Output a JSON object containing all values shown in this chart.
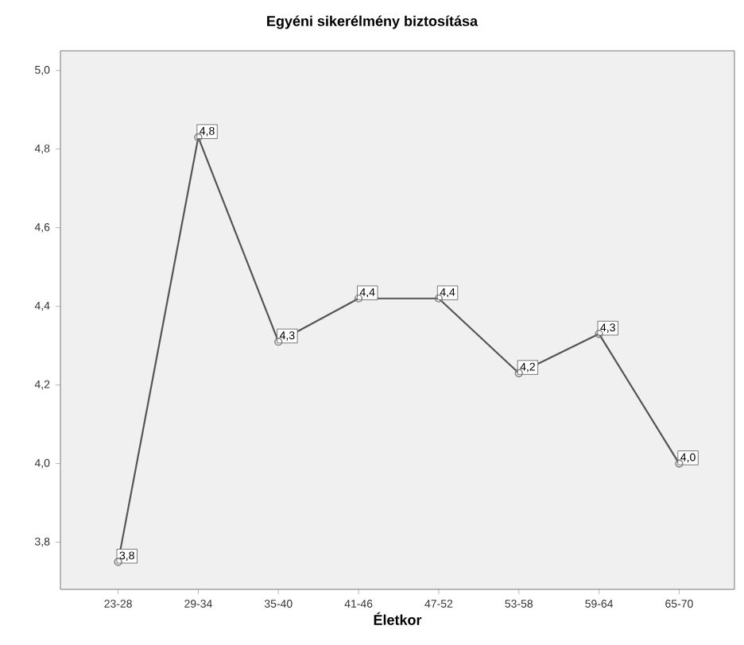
{
  "chart_data": {
    "type": "line",
    "title": "Egyéni sikerélmény biztosítása",
    "xlabel": "Életkor",
    "categories": [
      "23-28",
      "29-34",
      "35-40",
      "41-46",
      "47-52",
      "53-58",
      "59-64",
      "65-70"
    ],
    "series": [
      {
        "color": "#555555",
        "values": [
          3.75,
          4.83,
          4.31,
          4.42,
          4.42,
          4.23,
          4.33,
          4.0
        ],
        "value_labels": [
          "3,8",
          "4,8",
          "4,3",
          "4,4",
          "4,4",
          "4,2",
          "4,3",
          "4,0"
        ]
      }
    ],
    "ylim": [
      3.68,
      5.05
    ],
    "yticks": [
      {
        "value": 3.8,
        "label": "3,8"
      },
      {
        "value": 4.0,
        "label": "4,0"
      },
      {
        "value": 4.2,
        "label": "4,2"
      },
      {
        "value": 4.4,
        "label": "4,4"
      },
      {
        "value": 4.6,
        "label": "4,6"
      },
      {
        "value": 4.8,
        "label": "4,8"
      },
      {
        "value": 5.0,
        "label": "5,0"
      }
    ],
    "marker": "circle",
    "line_style": "solid"
  }
}
